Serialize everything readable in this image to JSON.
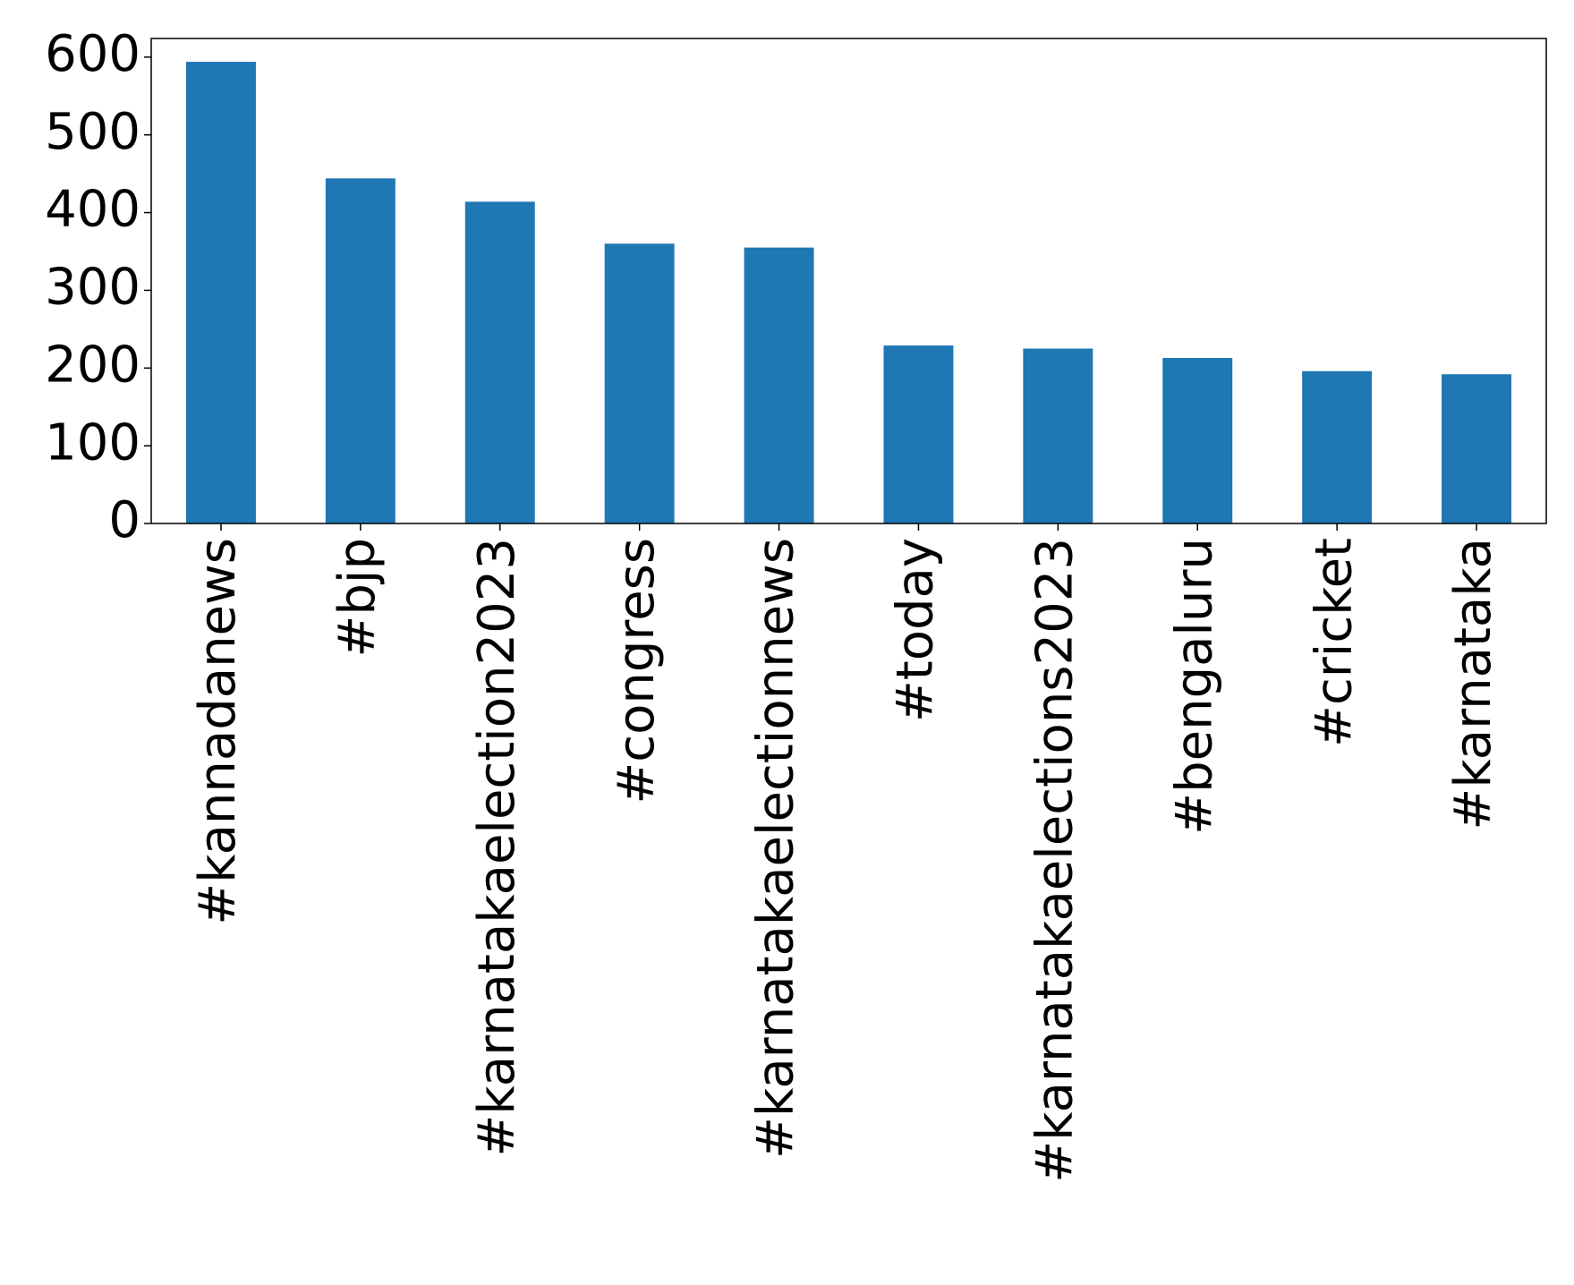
{
  "chart_data": {
    "type": "bar",
    "categories": [
      "#kannadanews",
      "#bjp",
      "#karnatakaelection2023",
      "#congress",
      "#karnatakaelectionnews",
      "#today",
      "#karnatakaelections2023",
      "#bengaluru",
      "#cricket",
      "#karnataka"
    ],
    "values": [
      594,
      444,
      414,
      360,
      355,
      229,
      225,
      213,
      196,
      192
    ],
    "color": "#1f77b4",
    "ylim": [
      0,
      624
    ],
    "yticks": [
      0,
      100,
      200,
      300,
      400,
      500,
      600
    ]
  }
}
